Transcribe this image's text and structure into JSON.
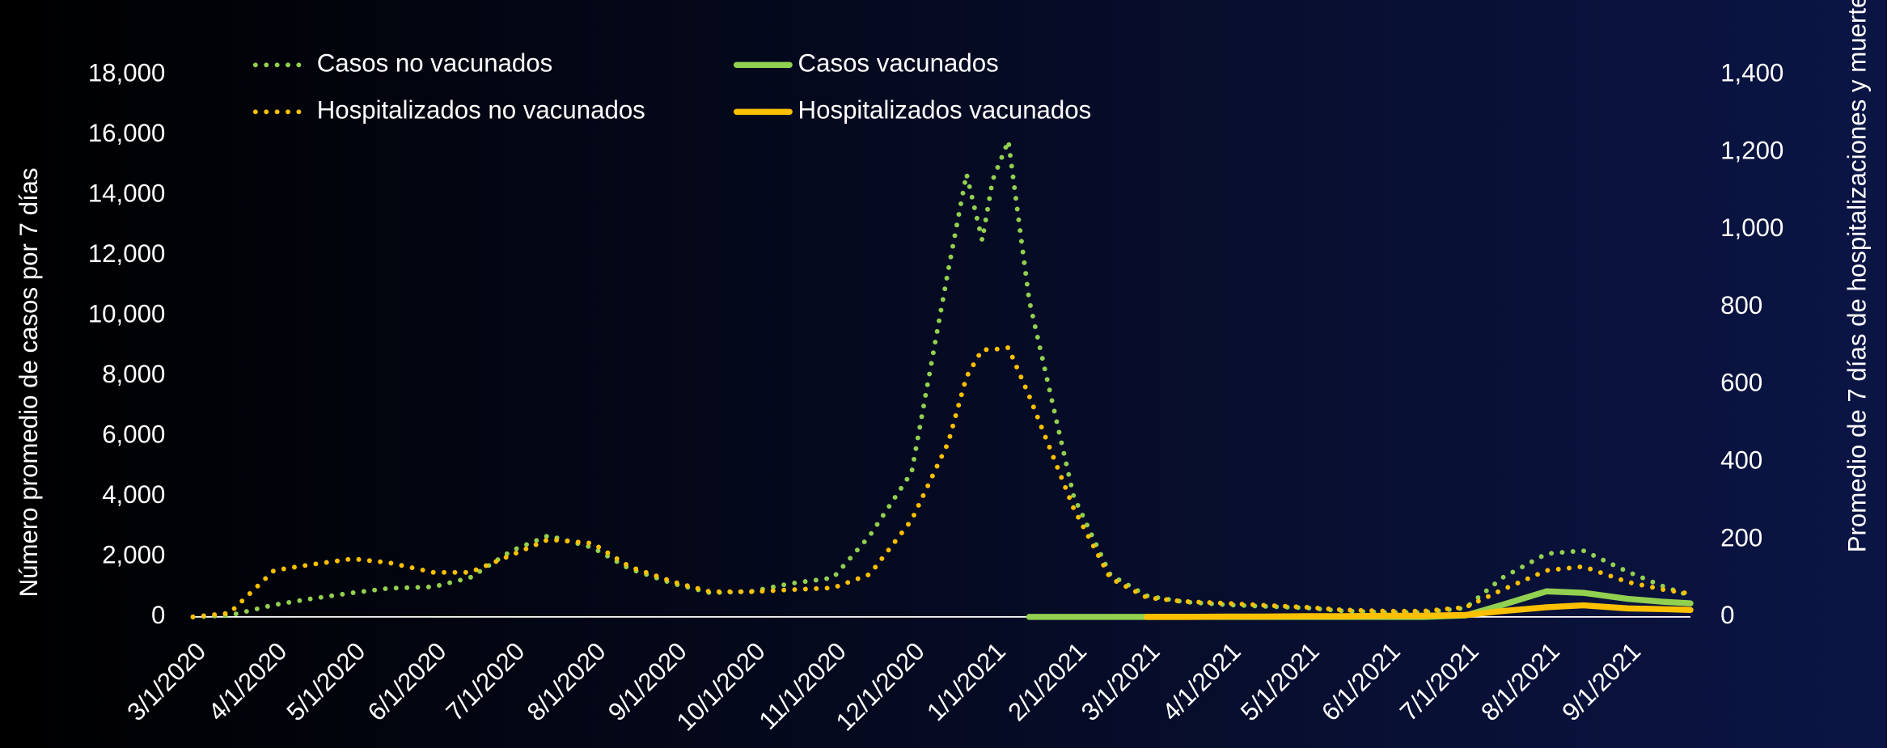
{
  "chart_data": {
    "type": "line",
    "y_label": "Número promedio de casos por 7 días",
    "y2_label": "Promedio de 7 días de hospitalizaciones y muertes",
    "x": [
      "3/1/2020",
      "3/15/2020",
      "4/1/2020",
      "4/15/2020",
      "5/1/2020",
      "5/15/2020",
      "6/1/2020",
      "6/15/2020",
      "7/1/2020",
      "7/15/2020",
      "8/1/2020",
      "8/15/2020",
      "9/1/2020",
      "9/15/2020",
      "10/1/2020",
      "10/15/2020",
      "11/1/2020",
      "11/15/2020",
      "12/1/2020",
      "12/15/2020",
      "12/22/2020",
      "12/28/2020",
      "1/1/2021",
      "1/7/2021",
      "1/15/2021",
      "2/1/2021",
      "2/15/2021",
      "3/1/2021",
      "3/15/2021",
      "4/1/2021",
      "4/15/2021",
      "5/1/2021",
      "5/15/2021",
      "6/1/2021",
      "6/15/2021",
      "7/1/2021",
      "7/15/2021",
      "8/1/2021",
      "8/15/2021",
      "9/1/2021",
      "9/15/2021",
      "9/25/2021"
    ],
    "xlim": [
      "3/1/2020",
      "9/25/2021"
    ],
    "xticks": [
      "3/1/2020",
      "4/1/2020",
      "5/1/2020",
      "6/1/2020",
      "7/1/2020",
      "8/1/2020",
      "9/1/2020",
      "10/1/2020",
      "11/1/2020",
      "12/1/2020",
      "1/1/2021",
      "2/1/2021",
      "3/1/2021",
      "4/1/2021",
      "5/1/2021",
      "6/1/2021",
      "7/1/2021",
      "8/1/2021",
      "9/1/2021"
    ],
    "ylim": [
      0,
      18000
    ],
    "yticks": [
      0,
      {
        "value": 2000,
        "label": "2,000"
      },
      {
        "value": 4000,
        "label": "4,000"
      },
      {
        "value": 6000,
        "label": "6,000"
      },
      {
        "value": 8000,
        "label": "8,000"
      },
      {
        "value": 10000,
        "label": "10,000"
      },
      {
        "value": 12000,
        "label": "12,000"
      },
      {
        "value": 14000,
        "label": "14,000"
      },
      {
        "value": 16000,
        "label": "16,000"
      },
      {
        "value": 18000,
        "label": "18,000"
      }
    ],
    "y2lim": [
      0,
      1400
    ],
    "y2ticks": [
      0,
      200,
      400,
      600,
      800,
      {
        "value": 1000,
        "label": "1,000"
      },
      {
        "value": 1200,
        "label": "1,200"
      },
      {
        "value": 1400,
        "label": "1,400"
      }
    ],
    "series": [
      {
        "name": "Casos no vacunados",
        "color": "#92d050",
        "style": "dotted",
        "values": [
          0,
          50,
          400,
          600,
          800,
          950,
          1000,
          1300,
          2200,
          2700,
          2300,
          1600,
          1100,
          800,
          850,
          1100,
          1300,
          2700,
          4800,
          11500,
          14700,
          12500,
          14500,
          15800,
          10500,
          4000,
          1400,
          700,
          500,
          400,
          350,
          300,
          200,
          150,
          150,
          300,
          1300,
          2100,
          2200,
          1500,
          1000,
          700
        ]
      },
      {
        "name": "Casos vacunados",
        "color": "#92d050",
        "style": "solid",
        "values": [
          null,
          null,
          null,
          null,
          null,
          null,
          null,
          null,
          null,
          null,
          null,
          null,
          null,
          null,
          null,
          null,
          null,
          null,
          null,
          null,
          null,
          null,
          null,
          null,
          0,
          0,
          0,
          0,
          0,
          0,
          0,
          0,
          0,
          0,
          0,
          50,
          400,
          850,
          800,
          600,
          500,
          450
        ]
      },
      {
        "name": "Hospitalizados no vacunados",
        "color": "#ffc000",
        "style": "dotted",
        "axis": "y2",
        "values": [
          0,
          10,
          120,
          135,
          150,
          140,
          115,
          115,
          160,
          200,
          190,
          130,
          90,
          65,
          65,
          70,
          75,
          110,
          250,
          450,
          620,
          690,
          690,
          695,
          570,
          280,
          100,
          50,
          40,
          35,
          30,
          25,
          18,
          15,
          15,
          25,
          70,
          120,
          130,
          90,
          70,
          60
        ]
      },
      {
        "name": "Hospitalizados vacunados",
        "color": "#ffc000",
        "style": "solid",
        "axis": "y2",
        "values": [
          null,
          null,
          null,
          null,
          null,
          null,
          null,
          null,
          null,
          null,
          null,
          null,
          null,
          null,
          null,
          null,
          null,
          null,
          null,
          null,
          null,
          null,
          null,
          null,
          null,
          null,
          null,
          0,
          0,
          1,
          1,
          2,
          2,
          3,
          3,
          5,
          15,
          25,
          30,
          22,
          20,
          18
        ]
      }
    ]
  }
}
